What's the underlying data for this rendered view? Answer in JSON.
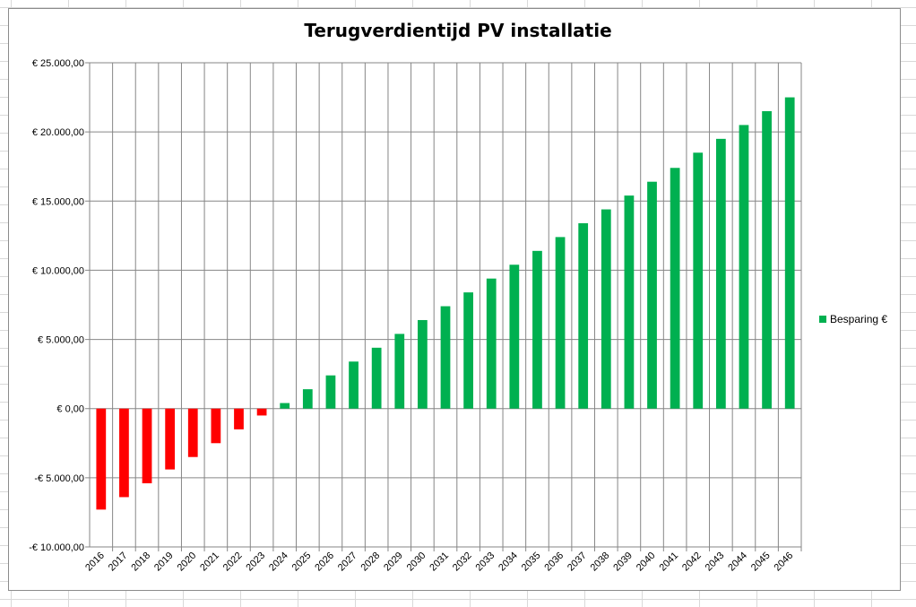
{
  "chart_data": {
    "type": "bar",
    "title": "Terugverdientijd PV installatie",
    "xlabel": "",
    "ylabel": "",
    "ylim": [
      -10000,
      25000
    ],
    "yticks": [
      -10000,
      -5000,
      0,
      5000,
      10000,
      15000,
      20000,
      25000
    ],
    "ytick_labels": [
      "-€ 10.000,00",
      "-€ 5.000,00",
      "€ 0,00",
      "€ 5.000,00",
      "€ 10.000,00",
      "€ 15.000,00",
      "€ 20.000,00",
      "€ 25.000,00"
    ],
    "grid": true,
    "legend_position": "right",
    "categories": [
      "2016",
      "2017",
      "2018",
      "2019",
      "2020",
      "2021",
      "2022",
      "2023",
      "2024",
      "2025",
      "2026",
      "2027",
      "2028",
      "2029",
      "2030",
      "2031",
      "2032",
      "2033",
      "2034",
      "2035",
      "2036",
      "2037",
      "2038",
      "2039",
      "2040",
      "2041",
      "2042",
      "2043",
      "2044",
      "2045",
      "2046"
    ],
    "series": [
      {
        "name": "Besparing €",
        "values": [
          -7300,
          -6400,
          -5400,
          -4400,
          -3500,
          -2500,
          -1500,
          -500,
          400,
          1400,
          2400,
          3400,
          4400,
          5400,
          6400,
          7400,
          8400,
          9400,
          10400,
          11400,
          12400,
          13400,
          14400,
          15400,
          16400,
          17400,
          18500,
          19500,
          20500,
          21500,
          22500
        ]
      }
    ],
    "colors": {
      "positive": "#00b050",
      "negative": "#ff0000"
    }
  }
}
